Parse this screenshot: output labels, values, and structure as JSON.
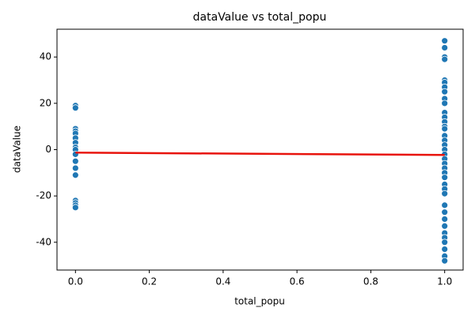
{
  "chart_data": {
    "type": "scatter",
    "title": "dataValue vs total_popu",
    "x_label": "total_popu",
    "y_label": "dataValue",
    "x": [
      0,
      0,
      0,
      0,
      0,
      0,
      0,
      0,
      0,
      0,
      0,
      0,
      0,
      0,
      0,
      0,
      0,
      1,
      1,
      1,
      1,
      1,
      1,
      1,
      1,
      1,
      1,
      1,
      1,
      1,
      1,
      1,
      1,
      1,
      1,
      1,
      1,
      1,
      1,
      1,
      1,
      1,
      1,
      1,
      1,
      1,
      1,
      1,
      1,
      1,
      1,
      1,
      1,
      1,
      1
    ],
    "values": [
      19,
      18,
      9,
      8,
      7,
      5,
      3,
      1,
      0,
      -2,
      -5,
      -8,
      -11,
      -22,
      -23,
      -24,
      -25,
      47,
      44,
      40,
      39,
      30,
      29,
      27,
      25,
      22,
      20,
      16,
      14,
      12,
      10,
      9,
      6,
      4,
      2,
      0,
      -2,
      -4,
      -6,
      -8,
      -10,
      -12,
      -15,
      -17,
      -19,
      -24,
      -27,
      -30,
      -33,
      -36,
      -38,
      -40,
      -43,
      -46,
      -48
    ],
    "color": "#1f77b4",
    "trend": {
      "x": [
        0,
        1
      ],
      "values": [
        -1.3,
        -2.3
      ],
      "color": "#e8130c"
    },
    "xlim": [
      -0.05,
      1.05
    ],
    "xticks": [
      {
        "value": 0,
        "label": "0.0"
      },
      {
        "value": 0.2,
        "label": "0.2"
      },
      {
        "value": 0.4,
        "label": "0.4"
      },
      {
        "value": 0.6,
        "label": "0.6"
      },
      {
        "value": 0.8,
        "label": "0.8"
      },
      {
        "value": 1,
        "label": "1.0"
      }
    ],
    "ylim": [
      -52,
      52
    ],
    "yticks": [
      -40,
      -20,
      0,
      20,
      40
    ],
    "grid": false
  }
}
